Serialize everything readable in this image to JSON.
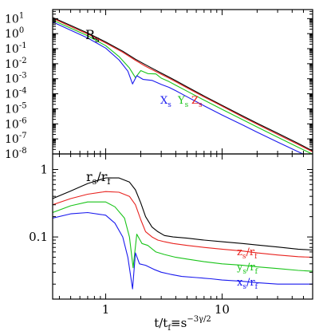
{
  "chart_data": [
    {
      "type": "line",
      "panel": "top",
      "y_scale": "log",
      "x_scale": "log",
      "xlim": [
        0.35,
        60
      ],
      "ylim": [
        1e-08,
        40
      ],
      "yticks": [
        {
          "value": 10,
          "label": "10",
          "exp": "1"
        },
        {
          "value": 1,
          "label": "10",
          "exp": "0"
        },
        {
          "value": 0.1,
          "label": "10",
          "exp": "-1"
        },
        {
          "value": 0.01,
          "label": "10",
          "exp": "-2"
        },
        {
          "value": 0.001,
          "label": "10",
          "exp": "-3"
        },
        {
          "value": 0.0001,
          "label": "10",
          "exp": "-4"
        },
        {
          "value": 1e-05,
          "label": "10",
          "exp": "-5"
        },
        {
          "value": 1e-06,
          "label": "10",
          "exp": "-6"
        },
        {
          "value": 1e-07,
          "label": "10",
          "exp": "-7"
        },
        {
          "value": 1e-08,
          "label": "10",
          "exp": "-8"
        }
      ],
      "series": [
        {
          "id": "R",
          "color": "#000000",
          "x": [
            0.35,
            0.5,
            0.7,
            1.0,
            1.4,
            1.8,
            2.2,
            2.6,
            3.0,
            3.5,
            4.0,
            5,
            7,
            10,
            15,
            20,
            30,
            45,
            60
          ],
          "y": [
            12,
            3.5,
            1.1,
            0.28,
            0.068,
            0.02,
            0.0085,
            0.0043,
            0.0024,
            0.0013,
            0.00075,
            0.00029,
            7.2e-05,
            1.7e-05,
            3.4e-06,
            1.1e-06,
            2.4e-07,
            5e-08,
            1.6e-08
          ]
        },
        {
          "id": "z",
          "color": "#e8231f",
          "x": [
            0.35,
            0.5,
            0.7,
            1.0,
            1.4,
            1.8,
            2.2,
            2.6,
            3.0,
            3.5,
            4.0,
            5,
            7,
            10,
            15,
            20,
            30,
            45,
            60
          ],
          "y": [
            10.5,
            3.0,
            0.95,
            0.24,
            0.058,
            0.017,
            0.0068,
            0.0035,
            0.002,
            0.0011,
            0.00063,
            0.00025,
            6.2e-05,
            1.5e-05,
            2.9e-06,
            9.5e-07,
            2e-07,
            4.3e-08,
            1.4e-08
          ]
        },
        {
          "id": "y",
          "color": "#19c419",
          "x": [
            0.35,
            0.5,
            0.7,
            1.0,
            1.3,
            1.6,
            1.8,
            2.0,
            2.3,
            2.7,
            3.0,
            3.5,
            4.0,
            5,
            7,
            10,
            15,
            20,
            30,
            45,
            60
          ],
          "y": [
            8,
            2.3,
            0.72,
            0.16,
            0.03,
            0.0052,
            0.0012,
            0.0035,
            0.0022,
            0.0021,
            0.0011,
            0.00065,
            0.00037,
            0.00015,
            3.8e-05,
            9.2e-06,
            1.9e-06,
            6.1e-07,
            1.3e-07,
            2.8e-08,
            9.5e-09
          ]
        },
        {
          "id": "x",
          "color": "#1a1aee",
          "x": [
            0.35,
            0.5,
            0.7,
            1.0,
            1.3,
            1.55,
            1.7,
            1.85,
            2.1,
            2.5,
            3.0,
            3.5,
            4.0,
            5,
            7,
            10,
            15,
            20,
            30,
            45,
            60
          ],
          "y": [
            6,
            1.7,
            0.52,
            0.11,
            0.018,
            0.0032,
            0.00045,
            0.0016,
            0.0009,
            0.00078,
            0.00042,
            0.00027,
            0.00016,
            6.4e-05,
            1.6e-05,
            3.9e-06,
            8.5e-07,
            2.8e-07,
            6.2e-08,
            1.4e-08,
            5e-09
          ]
        }
      ],
      "labels": [
        {
          "id": "R",
          "base": "R",
          "sub": "s",
          "color": "#000000"
        },
        {
          "id": "x",
          "base": "X",
          "sub": "s",
          "color": "#1a1aee"
        },
        {
          "id": "y",
          "base": "Y",
          "sub": "s",
          "color": "#19c419"
        },
        {
          "id": "z",
          "base": "Z",
          "sub": "s",
          "color": "#e8231f"
        }
      ]
    },
    {
      "type": "line",
      "panel": "bottom",
      "y_scale": "log",
      "x_scale": "log",
      "xlim": [
        0.35,
        60
      ],
      "ylim": [
        0.012,
        1.7
      ],
      "xticks": [
        {
          "value": 1,
          "label": "1"
        },
        {
          "value": 10,
          "label": "10"
        }
      ],
      "yticks": [
        {
          "value": 1,
          "label": "1"
        },
        {
          "value": 0.1,
          "label": "0.1"
        }
      ],
      "xlabel": "t/t",
      "xlabel_sub": "f",
      "xlabel_rest": "≡s",
      "xlabel_sup": "−3γ/2",
      "series": [
        {
          "id": "R",
          "color": "#000000",
          "x": [
            0.35,
            0.5,
            0.7,
            1.0,
            1.3,
            1.6,
            1.8,
            2.0,
            2.2,
            2.5,
            2.8,
            3.2,
            3.8,
            5,
            7,
            10,
            15,
            20,
            30,
            45,
            60
          ],
          "y": [
            0.37,
            0.48,
            0.62,
            0.75,
            0.75,
            0.65,
            0.5,
            0.32,
            0.2,
            0.14,
            0.12,
            0.105,
            0.1,
            0.096,
            0.09,
            0.085,
            0.08,
            0.076,
            0.071,
            0.066,
            0.064
          ]
        },
        {
          "id": "z",
          "color": "#e8231f",
          "x": [
            0.35,
            0.5,
            0.7,
            1.0,
            1.3,
            1.6,
            1.8,
            2.0,
            2.2,
            2.5,
            2.8,
            3.2,
            3.8,
            5,
            7,
            10,
            15,
            20,
            30,
            45,
            60
          ],
          "y": [
            0.3,
            0.37,
            0.43,
            0.47,
            0.46,
            0.4,
            0.3,
            0.18,
            0.12,
            0.1,
            0.09,
            0.085,
            0.08,
            0.075,
            0.07,
            0.066,
            0.062,
            0.058,
            0.054,
            0.051,
            0.05
          ]
        },
        {
          "id": "y",
          "color": "#19c419",
          "x": [
            0.35,
            0.5,
            0.7,
            1.0,
            1.2,
            1.45,
            1.6,
            1.72,
            1.85,
            2.05,
            2.3,
            2.7,
            3.2,
            4,
            5,
            7,
            10,
            15,
            20,
            30,
            45,
            60
          ],
          "y": [
            0.23,
            0.29,
            0.33,
            0.33,
            0.28,
            0.19,
            0.1,
            0.035,
            0.11,
            0.08,
            0.075,
            0.06,
            0.055,
            0.05,
            0.047,
            0.043,
            0.04,
            0.038,
            0.036,
            0.034,
            0.032,
            0.031
          ]
        },
        {
          "id": "x",
          "color": "#1a1aee",
          "x": [
            0.35,
            0.5,
            0.7,
            1.0,
            1.2,
            1.4,
            1.55,
            1.7,
            1.8,
            1.95,
            2.2,
            2.6,
            3.0,
            3.6,
            4.5,
            6,
            8,
            10,
            15,
            20,
            30,
            45,
            60
          ],
          "y": [
            0.19,
            0.22,
            0.23,
            0.21,
            0.16,
            0.1,
            0.05,
            0.017,
            0.058,
            0.04,
            0.038,
            0.033,
            0.03,
            0.028,
            0.026,
            0.025,
            0.024,
            0.023,
            0.022,
            0.021,
            0.02,
            0.02,
            0.02
          ]
        }
      ],
      "labels": [
        {
          "id": "R",
          "base": "r",
          "sub": "s",
          "den": "r",
          "den_sub": "f",
          "color": "#000000"
        },
        {
          "id": "z",
          "base": "z",
          "sub": "s",
          "den": "r",
          "den_sub": "f",
          "color": "#e8231f"
        },
        {
          "id": "y",
          "base": "y",
          "sub": "s",
          "den": "r",
          "den_sub": "f",
          "color": "#19c419"
        },
        {
          "id": "x",
          "base": "x",
          "sub": "s",
          "den": "r",
          "den_sub": "f",
          "color": "#1a1aee"
        }
      ]
    }
  ]
}
